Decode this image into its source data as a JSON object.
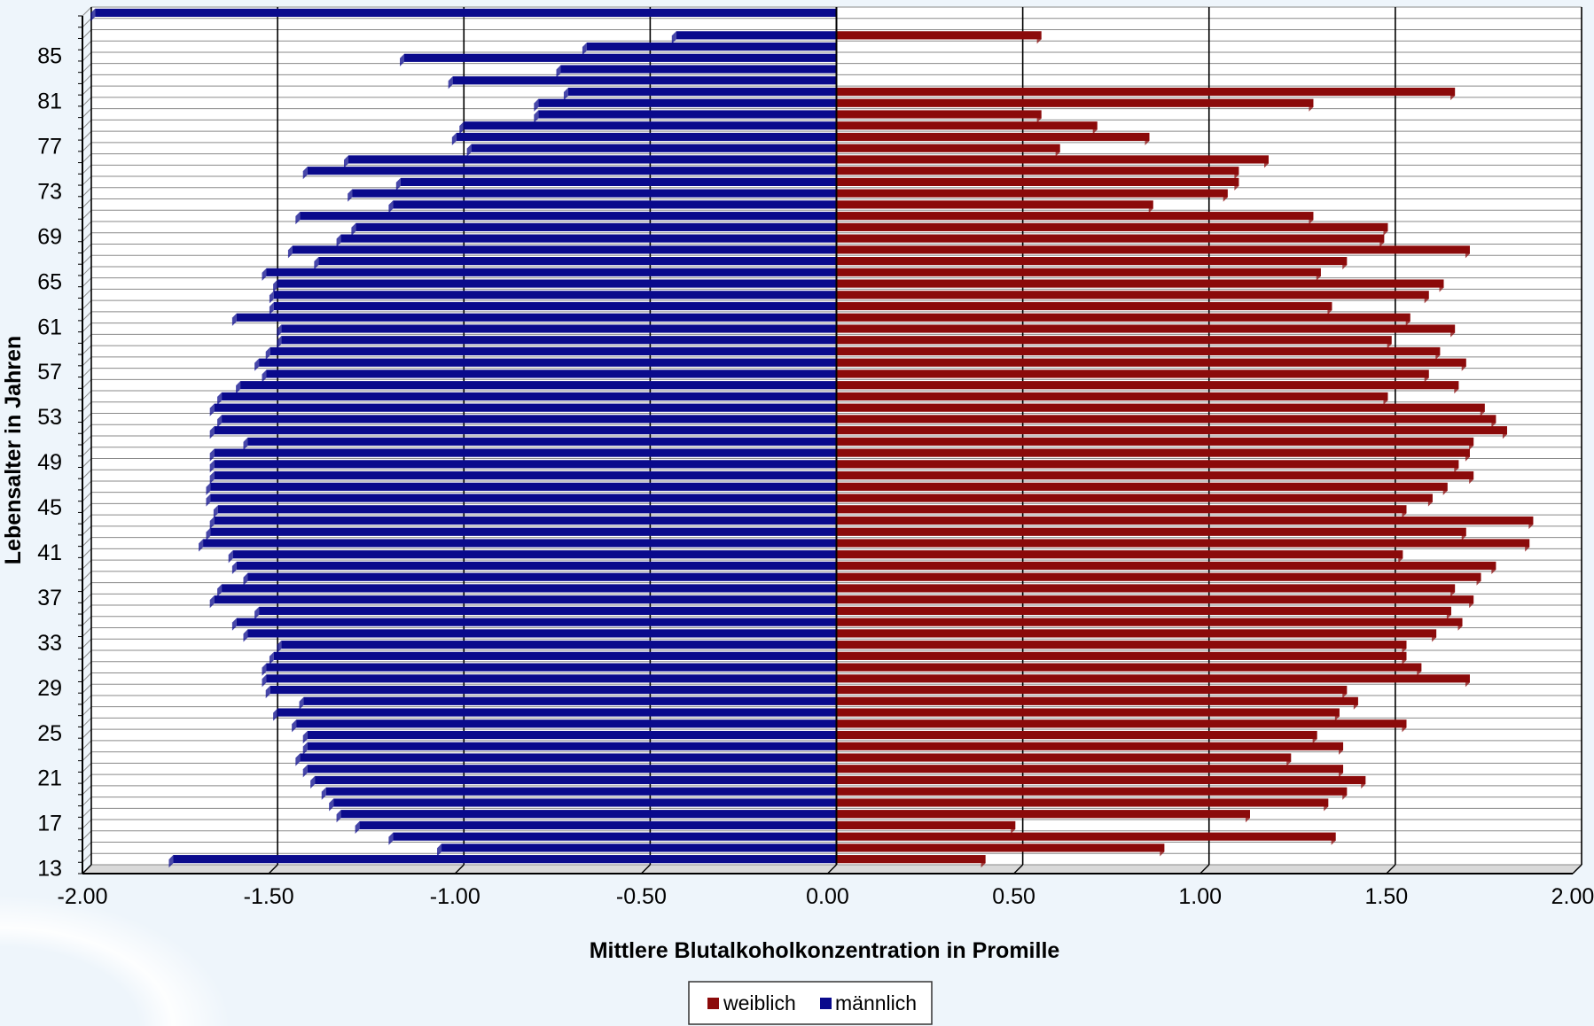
{
  "chart_data": {
    "type": "bar",
    "orientation": "horizontal",
    "stacking": "diverging",
    "xlabel": "Mittlere Blutalkoholkonzentration in Promille",
    "ylabel": "Lebensalter in Jahren",
    "xlim": [
      -2.0,
      2.0
    ],
    "x_ticks": [
      "-2.00",
      "-1.50",
      "-1.00",
      "-0.50",
      "0.00",
      "0.50",
      "1.00",
      "1.50",
      "2.00"
    ],
    "y_ticks": [
      "13",
      "17",
      "21",
      "25",
      "29",
      "33",
      "37",
      "41",
      "45",
      "49",
      "53",
      "57",
      "61",
      "65",
      "69",
      "73",
      "77",
      "81",
      "85"
    ],
    "grid": true,
    "legend_position": "bottom",
    "categories": [
      13,
      14,
      15,
      16,
      17,
      18,
      19,
      20,
      21,
      22,
      23,
      24,
      25,
      26,
      27,
      28,
      29,
      30,
      31,
      32,
      33,
      34,
      35,
      36,
      37,
      38,
      39,
      40,
      41,
      42,
      43,
      44,
      45,
      46,
      47,
      48,
      49,
      50,
      51,
      52,
      53,
      54,
      55,
      56,
      57,
      58,
      59,
      60,
      61,
      62,
      63,
      64,
      65,
      66,
      67,
      68,
      69,
      70,
      71,
      72,
      73,
      74,
      75,
      76,
      77,
      78,
      79,
      80,
      81,
      82,
      83,
      84,
      85,
      86,
      87,
      88
    ],
    "series": [
      {
        "name": "weiblich",
        "color": "#8b0a0a",
        "values": [
          0.4,
          0.88,
          1.34,
          0.48,
          1.11,
          1.32,
          1.37,
          1.42,
          1.36,
          1.22,
          1.36,
          1.29,
          1.53,
          1.35,
          1.4,
          1.37,
          1.7,
          1.57,
          1.53,
          1.53,
          1.61,
          1.68,
          1.65,
          1.71,
          1.66,
          1.73,
          1.77,
          1.52,
          1.86,
          1.69,
          1.87,
          1.53,
          1.6,
          1.64,
          1.71,
          1.67,
          1.7,
          1.71,
          1.8,
          1.77,
          1.74,
          1.48,
          1.67,
          1.59,
          1.69,
          1.62,
          1.49,
          1.66,
          1.54,
          1.33,
          1.59,
          1.63,
          1.3,
          1.37,
          1.7,
          1.47,
          1.48,
          1.28,
          0.85,
          1.05,
          1.08,
          1.08,
          1.16,
          0.6,
          0.84,
          0.7,
          0.55,
          1.28,
          1.66,
          0.0,
          0.0,
          0.0,
          0.0,
          0.55,
          0.0,
          0.0
        ]
      },
      {
        "name": "männlich",
        "color": "#0a0a8c",
        "values": [
          -1.78,
          -1.06,
          -1.19,
          -1.28,
          -1.33,
          -1.35,
          -1.37,
          -1.4,
          -1.42,
          -1.44,
          -1.42,
          -1.42,
          -1.45,
          -1.5,
          -1.43,
          -1.52,
          -1.53,
          -1.53,
          -1.51,
          -1.49,
          -1.58,
          -1.61,
          -1.55,
          -1.67,
          -1.65,
          -1.58,
          -1.61,
          -1.62,
          -1.7,
          -1.68,
          -1.67,
          -1.66,
          -1.68,
          -1.68,
          -1.67,
          -1.67,
          -1.67,
          -1.58,
          -1.67,
          -1.65,
          -1.67,
          -1.65,
          -1.6,
          -1.53,
          -1.55,
          -1.52,
          -1.49,
          -1.49,
          -1.61,
          -1.51,
          -1.51,
          -1.5,
          -1.53,
          -1.39,
          -1.46,
          -1.33,
          -1.29,
          -1.44,
          -1.19,
          -1.3,
          -1.17,
          -1.42,
          -1.31,
          -0.98,
          -1.02,
          -1.0,
          -0.8,
          -0.8,
          -0.72,
          -1.03,
          -0.74,
          -1.16,
          -0.67,
          -0.43,
          0.0,
          -1.99
        ]
      }
    ]
  }
}
